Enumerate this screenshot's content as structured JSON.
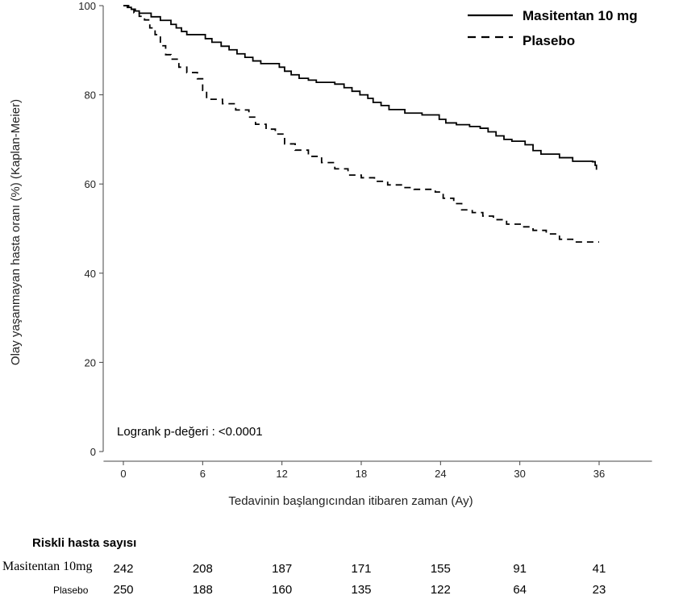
{
  "chart_data": {
    "type": "line",
    "subtype": "kaplan-meier step",
    "ylabel": "Olay yaşanmayan hasta oranı (%) (Kaplan-Meier)",
    "xlabel": "Tedavinin başlangıcından itibaren zaman (Ay)",
    "xlim": [
      0,
      40
    ],
    "ylim": [
      0,
      100
    ],
    "xticks": [
      0,
      6,
      12,
      18,
      24,
      30,
      36
    ],
    "yticks": [
      0,
      20,
      40,
      60,
      80,
      100
    ],
    "grid": false,
    "legend_position": "top-right",
    "annotation": "Logrank p-değeri : <0.0001",
    "series": [
      {
        "name": "Masitentan 10 mg",
        "line_style": "solid",
        "color": "#000000",
        "points": [
          [
            0,
            100
          ],
          [
            0.3,
            99.6
          ],
          [
            0.6,
            99.2
          ],
          [
            0.9,
            98.8
          ],
          [
            1.2,
            98.3
          ],
          [
            2.1,
            97.5
          ],
          [
            2.8,
            96.7
          ],
          [
            3.6,
            95.8
          ],
          [
            4.0,
            95.0
          ],
          [
            4.4,
            94.2
          ],
          [
            4.8,
            93.5
          ],
          [
            6.2,
            92.6
          ],
          [
            6.7,
            91.8
          ],
          [
            7.4,
            90.9
          ],
          [
            8.0,
            90.1
          ],
          [
            8.6,
            89.2
          ],
          [
            9.2,
            88.4
          ],
          [
            9.8,
            87.6
          ],
          [
            10.4,
            87.0
          ],
          [
            11.8,
            86.2
          ],
          [
            12.2,
            85.3
          ],
          [
            12.7,
            84.5
          ],
          [
            13.3,
            83.7
          ],
          [
            14.0,
            83.3
          ],
          [
            14.6,
            82.8
          ],
          [
            16.0,
            82.4
          ],
          [
            16.7,
            81.6
          ],
          [
            17.3,
            80.8
          ],
          [
            17.9,
            80.0
          ],
          [
            18.5,
            79.2
          ],
          [
            18.9,
            78.3
          ],
          [
            19.5,
            77.6
          ],
          [
            20.1,
            76.7
          ],
          [
            21.3,
            75.9
          ],
          [
            22.6,
            75.5
          ],
          [
            23.9,
            74.5
          ],
          [
            24.4,
            73.7
          ],
          [
            25.2,
            73.3
          ],
          [
            26.2,
            72.9
          ],
          [
            27.0,
            72.5
          ],
          [
            27.6,
            71.7
          ],
          [
            28.2,
            70.8
          ],
          [
            28.8,
            70.0
          ],
          [
            29.4,
            69.6
          ],
          [
            30.4,
            68.8
          ],
          [
            31.0,
            67.5
          ],
          [
            31.6,
            66.7
          ],
          [
            33.0,
            65.9
          ],
          [
            34.0,
            65.1
          ],
          [
            35.5,
            65.0
          ],
          [
            35.7,
            64.2
          ],
          [
            35.8,
            63.2
          ]
        ]
      },
      {
        "name": "Plasebo",
        "line_style": "dashed",
        "color": "#000000",
        "points": [
          [
            0,
            100
          ],
          [
            0.4,
            99.2
          ],
          [
            0.8,
            98.4
          ],
          [
            1.2,
            97.6
          ],
          [
            1.6,
            96.8
          ],
          [
            2.0,
            95.0
          ],
          [
            2.4,
            93.5
          ],
          [
            2.8,
            91.0
          ],
          [
            3.2,
            89.0
          ],
          [
            3.6,
            88.0
          ],
          [
            4.2,
            86.2
          ],
          [
            4.8,
            85.0
          ],
          [
            5.6,
            83.6
          ],
          [
            6.0,
            81.0
          ],
          [
            6.3,
            79.0
          ],
          [
            7.5,
            78.0
          ],
          [
            8.5,
            76.6
          ],
          [
            9.5,
            75.0
          ],
          [
            10.0,
            73.4
          ],
          [
            10.8,
            72.3
          ],
          [
            11.5,
            71.2
          ],
          [
            12.2,
            69.0
          ],
          [
            13.0,
            67.6
          ],
          [
            14.0,
            66.2
          ],
          [
            15.0,
            64.8
          ],
          [
            16.0,
            63.4
          ],
          [
            17.0,
            62.0
          ],
          [
            18.0,
            61.4
          ],
          [
            19.0,
            60.6
          ],
          [
            20.0,
            59.8
          ],
          [
            21.2,
            59.2
          ],
          [
            22.0,
            58.8
          ],
          [
            23.6,
            58.2
          ],
          [
            24.2,
            56.8
          ],
          [
            25.0,
            55.6
          ],
          [
            25.6,
            54.2
          ],
          [
            26.4,
            53.6
          ],
          [
            27.2,
            52.8
          ],
          [
            28.0,
            52.0
          ],
          [
            29.0,
            51.0
          ],
          [
            30.2,
            50.4
          ],
          [
            31.0,
            49.6
          ],
          [
            32.0,
            48.8
          ],
          [
            33.0,
            47.6
          ],
          [
            34.0,
            47.0
          ],
          [
            35.5,
            47.0
          ],
          [
            36.0,
            47.0
          ]
        ]
      }
    ]
  },
  "risk_table": {
    "title": "Riskli hasta sayısı",
    "rows": [
      {
        "label": "Masitentan 10mg",
        "values": [
          "242",
          "208",
          "187",
          "171",
          "155",
          "91",
          "41"
        ]
      },
      {
        "label": "Plasebo",
        "values": [
          "250",
          "188",
          "160",
          "135",
          "122",
          "64",
          "23"
        ]
      }
    ]
  }
}
